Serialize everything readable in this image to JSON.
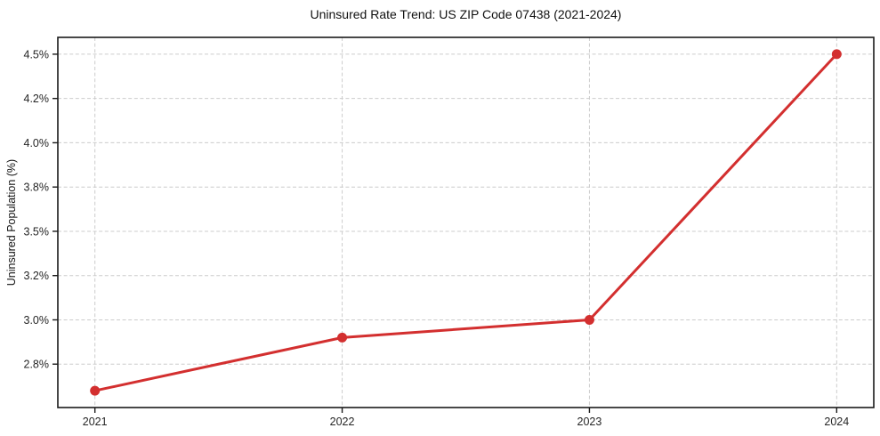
{
  "page": {
    "background": "#ffffff"
  },
  "chart_data": {
    "type": "line",
    "title": "Uninsured Rate Trend: US ZIP Code 07438 (2021-2024)",
    "xlabel": "",
    "ylabel": "Uninsured Population (%)",
    "x": [
      2021,
      2022,
      2023,
      2024
    ],
    "series": [
      {
        "name": "uninsured-rate",
        "values": [
          2.6,
          2.9,
          3.0,
          4.5
        ],
        "color": "#d32f2f",
        "marker": "circle",
        "marker_radius": 5.5,
        "line_width": 3
      }
    ],
    "x_tick_labels": [
      "2021",
      "2022",
      "2023",
      "2024"
    ],
    "y_ticks": [
      {
        "value": 2.75,
        "label": "2.8%"
      },
      {
        "value": 3.0,
        "label": "3.0%"
      },
      {
        "value": 3.25,
        "label": "3.2%"
      },
      {
        "value": 3.5,
        "label": "3.5%"
      },
      {
        "value": 3.75,
        "label": "3.8%"
      },
      {
        "value": 4.0,
        "label": "4.0%"
      },
      {
        "value": 4.25,
        "label": "4.2%"
      },
      {
        "value": 4.5,
        "label": "4.5%"
      }
    ],
    "xlim": [
      2020.85,
      2024.15
    ],
    "ylim": [
      2.505,
      4.595
    ],
    "grid": {
      "show": true,
      "line_style": "dashed",
      "color": "#cccccc"
    },
    "axis_color": "#1a1a1a",
    "tick_label_color": "#262626",
    "legend": {
      "show": false
    }
  }
}
